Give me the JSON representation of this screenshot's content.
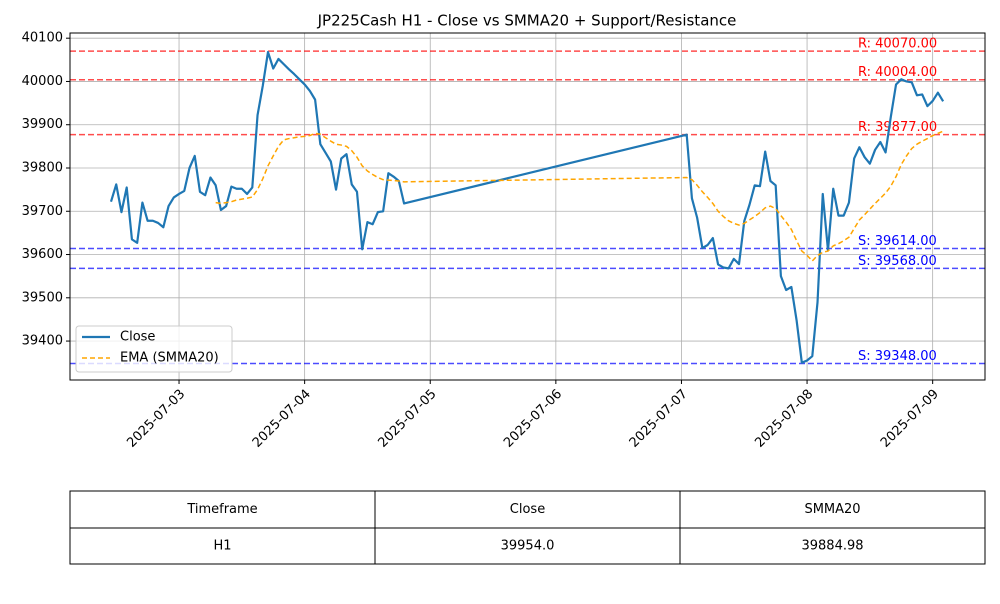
{
  "chart_data": {
    "type": "line",
    "title": "JP225Cash H1 - Close vs SMMA20 + Support/Resistance",
    "x": [
      "2025-07-02T11:00",
      "2025-07-02T12:00",
      "2025-07-02T13:00",
      "2025-07-02T14:00",
      "2025-07-02T15:00",
      "2025-07-02T16:00",
      "2025-07-02T17:00",
      "2025-07-02T18:00",
      "2025-07-02T19:00",
      "2025-07-02T20:00",
      "2025-07-02T21:00",
      "2025-07-02T22:00",
      "2025-07-02T23:00",
      "2025-07-03T00:00",
      "2025-07-03T01:00",
      "2025-07-03T02:00",
      "2025-07-03T03:00",
      "2025-07-03T04:00",
      "2025-07-03T05:00",
      "2025-07-03T06:00",
      "2025-07-03T07:00",
      "2025-07-03T08:00",
      "2025-07-03T09:00",
      "2025-07-03T10:00",
      "2025-07-03T11:00",
      "2025-07-03T12:00",
      "2025-07-03T13:00",
      "2025-07-03T14:00",
      "2025-07-03T15:00",
      "2025-07-03T16:00",
      "2025-07-03T17:00",
      "2025-07-03T18:00",
      "2025-07-03T19:00",
      "2025-07-03T20:00",
      "2025-07-03T21:00",
      "2025-07-03T22:00",
      "2025-07-03T23:00",
      "2025-07-04T00:00",
      "2025-07-04T01:00",
      "2025-07-04T02:00",
      "2025-07-04T03:00",
      "2025-07-04T04:00",
      "2025-07-04T05:00",
      "2025-07-04T06:00",
      "2025-07-04T07:00",
      "2025-07-04T08:00",
      "2025-07-04T09:00",
      "2025-07-04T10:00",
      "2025-07-04T11:00",
      "2025-07-04T12:00",
      "2025-07-04T13:00",
      "2025-07-04T14:00",
      "2025-07-04T15:00",
      "2025-07-04T16:00",
      "2025-07-04T17:00",
      "2025-07-04T18:00",
      "2025-07-04T19:00",
      "2025-07-07T01:00",
      "2025-07-07T02:00",
      "2025-07-07T03:00",
      "2025-07-07T04:00",
      "2025-07-07T05:00",
      "2025-07-07T06:00",
      "2025-07-07T07:00",
      "2025-07-07T08:00",
      "2025-07-07T09:00",
      "2025-07-07T10:00",
      "2025-07-07T11:00",
      "2025-07-07T12:00",
      "2025-07-07T13:00",
      "2025-07-07T14:00",
      "2025-07-07T15:00",
      "2025-07-07T16:00",
      "2025-07-07T17:00",
      "2025-07-07T18:00",
      "2025-07-07T19:00",
      "2025-07-07T20:00",
      "2025-07-07T21:00",
      "2025-07-07T22:00",
      "2025-07-07T23:00",
      "2025-07-08T00:00",
      "2025-07-08T01:00",
      "2025-07-08T02:00",
      "2025-07-08T03:00",
      "2025-07-08T04:00",
      "2025-07-08T05:00",
      "2025-07-08T06:00",
      "2025-07-08T07:00",
      "2025-07-08T08:00",
      "2025-07-08T09:00",
      "2025-07-08T10:00",
      "2025-07-08T11:00",
      "2025-07-08T12:00",
      "2025-07-08T13:00",
      "2025-07-08T14:00",
      "2025-07-08T15:00",
      "2025-07-08T16:00",
      "2025-07-08T17:00",
      "2025-07-08T18:00",
      "2025-07-08T19:00",
      "2025-07-08T20:00",
      "2025-07-08T21:00",
      "2025-07-08T22:00",
      "2025-07-08T23:00",
      "2025-07-09T00:00",
      "2025-07-09T01:00",
      "2025-07-09T02:00"
    ],
    "series": [
      {
        "name": "Close",
        "color": "#1f77b4",
        "dashed": false,
        "values": [
          39722,
          39762,
          39698,
          39755,
          39635,
          39627,
          39720,
          39678,
          39678,
          39673,
          39663,
          39712,
          39732,
          39740,
          39747,
          39800,
          39828,
          39745,
          39737,
          39778,
          39760,
          39703,
          39712,
          39757,
          39752,
          39752,
          39740,
          39755,
          39922,
          39990,
          40068,
          40030,
          40052,
          40040,
          40028,
          40017,
          40005,
          39993,
          39978,
          39958,
          39855,
          39835,
          39815,
          39750,
          39822,
          39832,
          39762,
          39745,
          39612,
          39675,
          39670,
          39698,
          39700,
          39788,
          39780,
          39770,
          39718,
          39877,
          39730,
          39685,
          39615,
          39622,
          39638,
          39577,
          39570,
          39568,
          39590,
          39578,
          39677,
          39715,
          39760,
          39758,
          39838,
          39770,
          39760,
          39550,
          39518,
          39525,
          39448,
          39350,
          39355,
          39365,
          39490,
          39740,
          39610,
          39752,
          39690,
          39690,
          39720,
          39822,
          39848,
          39825,
          39810,
          39842,
          39860,
          39836,
          39918,
          39993,
          40005,
          40000,
          39998,
          39968,
          39970,
          39943,
          39955,
          39974,
          39954
        ]
      },
      {
        "name": "EMA (SMMA20)",
        "color": "#ffa500",
        "dashed": true,
        "values": [
          null,
          null,
          null,
          null,
          null,
          null,
          null,
          null,
          null,
          null,
          null,
          null,
          null,
          null,
          null,
          null,
          null,
          null,
          null,
          null,
          39720,
          39718,
          39720,
          39722,
          39726,
          39728,
          39730,
          39733,
          39750,
          39775,
          39805,
          39828,
          39850,
          39865,
          39868,
          39870,
          39872,
          39873,
          39875,
          39880,
          39878,
          39870,
          39862,
          39855,
          39853,
          39850,
          39840,
          39825,
          39805,
          39793,
          39785,
          39778,
          39773,
          39772,
          39771,
          39770,
          39768,
          39778,
          39773,
          39760,
          39745,
          39732,
          39718,
          39700,
          39688,
          39678,
          39672,
          39668,
          39672,
          39680,
          39688,
          39697,
          39708,
          39712,
          39706,
          39690,
          39675,
          39658,
          39632,
          39608,
          39598,
          39585,
          39598,
          39605,
          39608,
          39620,
          39625,
          39632,
          39640,
          39660,
          39680,
          39692,
          39705,
          39718,
          39730,
          39742,
          39758,
          39780,
          39808,
          39828,
          39845,
          39855,
          39862,
          39868,
          39875,
          39880,
          39884.98
        ]
      }
    ],
    "levels": {
      "values": [
        40070,
        40004,
        39877,
        39614,
        39568,
        39348
      ],
      "value_labels": [
        "R: 40070.00",
        "R: 40004.00",
        "R: 39877.00",
        "S: 39614.00",
        "S: 39568.00",
        "S: 39348.00"
      ],
      "colors": [
        "#ff0000",
        "#ff0000",
        "#ff0000",
        "#0000ff",
        "#0000ff",
        "#0000ff"
      ]
    },
    "xlim": [
      "2025-07-02T03:10",
      "2025-07-09T10:00"
    ],
    "xticks": [
      {
        "value": "2025-07-03T00:00",
        "label": "2025-07-03"
      },
      {
        "value": "2025-07-04T00:00",
        "label": "2025-07-04"
      },
      {
        "value": "2025-07-05T00:00",
        "label": "2025-07-05"
      },
      {
        "value": "2025-07-06T00:00",
        "label": "2025-07-06"
      },
      {
        "value": "2025-07-07T00:00",
        "label": "2025-07-07"
      },
      {
        "value": "2025-07-08T00:00",
        "label": "2025-07-08"
      },
      {
        "value": "2025-07-09T00:00",
        "label": "2025-07-09"
      }
    ],
    "ylim": [
      39310,
      40112
    ],
    "yticks": [
      39400,
      39500,
      39600,
      39700,
      39800,
      39900,
      40000,
      40100
    ],
    "grid": true,
    "legend": "lower left"
  },
  "table": {
    "header": [
      "Timeframe",
      "Close",
      "SMMA20"
    ],
    "rows": [
      [
        "H1",
        "39954.0",
        "39884.98"
      ]
    ]
  }
}
